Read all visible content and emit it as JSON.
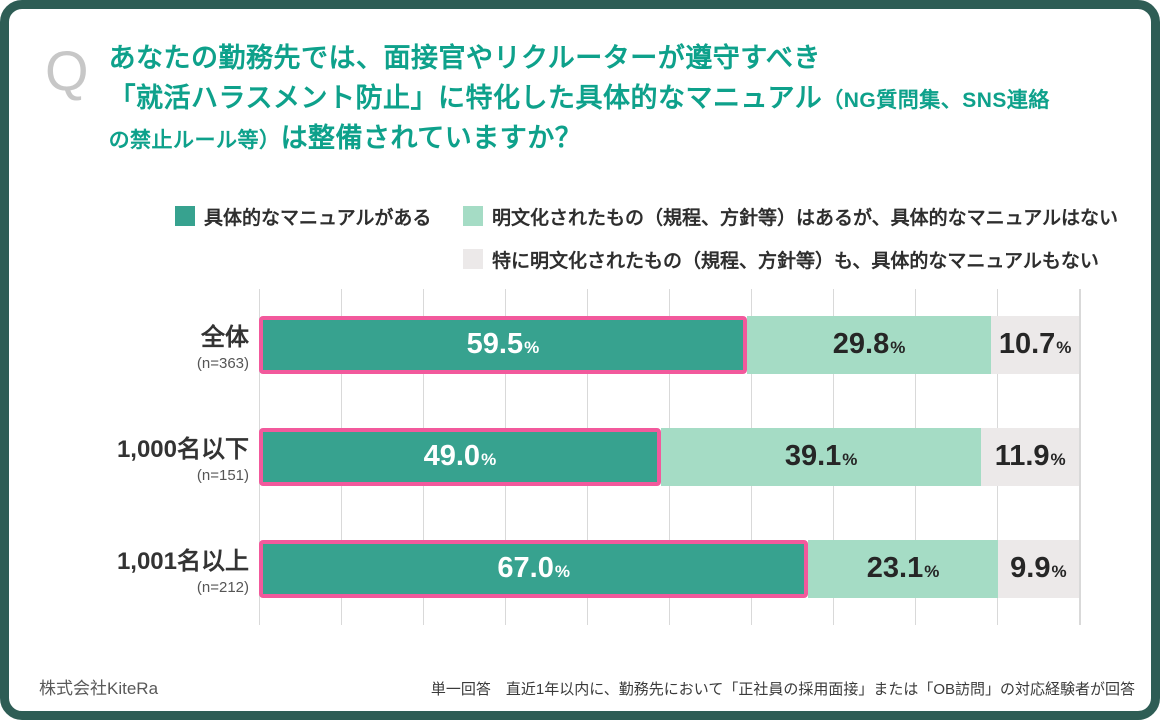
{
  "frame": {
    "border_color": "#2e5d55",
    "background": "#ffffff"
  },
  "question": {
    "mark": "Q",
    "accent_color": "#0ea18b",
    "line1": "あなたの勤務先では、面接官やリクルーターが遵守すべき",
    "line2_main": "「就活ハラスメント防止」に特化した具体的なマニュアル",
    "line2_small": "（NG質問集、SNS連絡",
    "line3_small": "の禁止ルール等）",
    "line3_main": "は整備されていますか？"
  },
  "legend": {
    "items": [
      {
        "label": "具体的なマニュアルがある",
        "color": "#37a28f"
      },
      {
        "label": "明文化されたもの（規程、方針等）はあるが、具体的なマニュアルはない",
        "color": "#a5dcc5"
      },
      {
        "label": "特に明文化されたもの（規程、方針等）も、具体的なマニュアルもない",
        "color": "#ece9e9"
      }
    ]
  },
  "chart_data": {
    "type": "bar",
    "orientation": "horizontal",
    "stacked": true,
    "unit": "%",
    "x_range": [
      0,
      100
    ],
    "gridline_step": 10,
    "gridlines": true,
    "highlight": {
      "series": "具体的なマニュアルがある",
      "border_color": "#f2599c"
    },
    "categories": [
      "全体",
      "1,000名以下",
      "1,001名以上"
    ],
    "sample_sizes": [
      "(n=363)",
      "(n=151)",
      "(n=212)"
    ],
    "series": [
      {
        "name": "具体的なマニュアルがある",
        "color": "#37a28f",
        "values": [
          59.5,
          49.0,
          67.0
        ],
        "labels": [
          "59.5",
          "49.0",
          "67.0"
        ]
      },
      {
        "name": "明文化されたもの（規程、方針等）はあるが、具体的なマニュアルはない",
        "color": "#a5dcc5",
        "values": [
          29.8,
          39.1,
          23.1
        ],
        "labels": [
          "29.8",
          "39.1",
          "23.1"
        ]
      },
      {
        "name": "特に明文化されたもの（規程、方針等）も、具体的なマニュアルもない",
        "color": "#ece9e9",
        "values": [
          10.7,
          11.9,
          9.9
        ],
        "labels": [
          "10.7",
          "11.9",
          "9.9"
        ]
      }
    ]
  },
  "footer": {
    "company": "株式会社KiteRa",
    "note": "単一回答　直近1年以内に、勤務先において「正社員の採用面接」または「OB訪問」の対応経験者が回答"
  }
}
